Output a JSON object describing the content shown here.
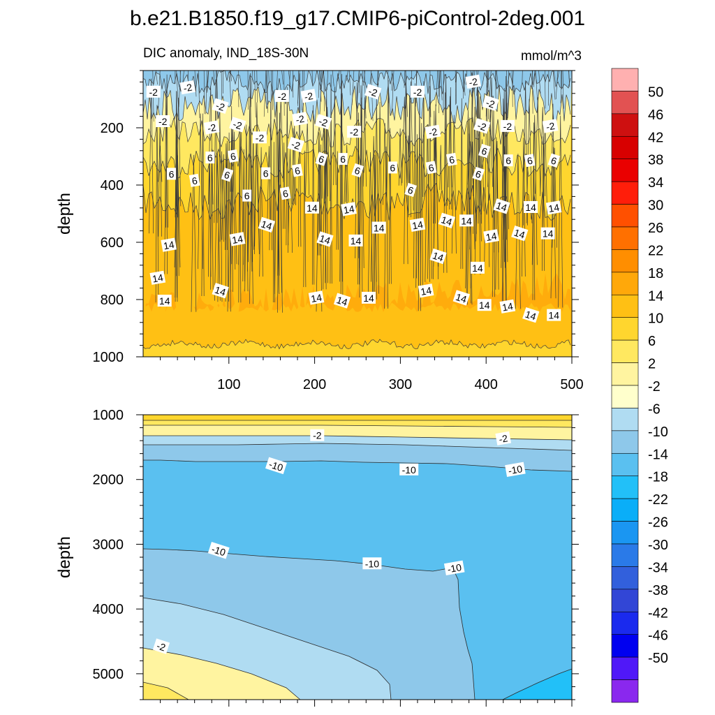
{
  "title": "b.e21.B1850.f19_g17.CMIP6-piControl-2deg.001",
  "chart_data": [
    {
      "type": "contour",
      "panel": "upper",
      "subtitle_left": "DIC anomaly, IND_18S-30N",
      "subtitle_right": "mmol/m^3",
      "xlabel": "",
      "ylabel": "depth",
      "xlim": [
        0,
        500
      ],
      "ylim": [
        1000,
        0
      ],
      "xticks": [
        100,
        200,
        300,
        400,
        500
      ],
      "yticks": [
        200,
        400,
        600,
        800,
        1000
      ],
      "contour_levels": [
        -2,
        6,
        14
      ],
      "contour_labels": [
        {
          "t": 12,
          "d": 75,
          "v": "-2"
        },
        {
          "t": 52,
          "d": 60,
          "v": "-2"
        },
        {
          "t": 90,
          "d": 125,
          "v": "-2"
        },
        {
          "t": 162,
          "d": 90,
          "v": "-2"
        },
        {
          "t": 193,
          "d": 90,
          "v": "-2"
        },
        {
          "t": 268,
          "d": 75,
          "v": "-2"
        },
        {
          "t": 320,
          "d": 75,
          "v": "-2"
        },
        {
          "t": 385,
          "d": 40,
          "v": "-2"
        },
        {
          "t": 405,
          "d": 115,
          "v": "-2"
        },
        {
          "t": 23,
          "d": 178,
          "v": "-2"
        },
        {
          "t": 80,
          "d": 200,
          "v": "-2"
        },
        {
          "t": 110,
          "d": 190,
          "v": "-2"
        },
        {
          "t": 136,
          "d": 235,
          "v": "-2"
        },
        {
          "t": 183,
          "d": 170,
          "v": "-2"
        },
        {
          "t": 210,
          "d": 180,
          "v": "-2"
        },
        {
          "t": 246,
          "d": 215,
          "v": "-2"
        },
        {
          "t": 338,
          "d": 215,
          "v": "-2"
        },
        {
          "t": 395,
          "d": 195,
          "v": "-2"
        },
        {
          "t": 425,
          "d": 195,
          "v": "-2"
        },
        {
          "t": 475,
          "d": 195,
          "v": "-2"
        },
        {
          "t": 178,
          "d": 260,
          "v": "-2"
        },
        {
          "t": 78,
          "d": 305,
          "v": "6"
        },
        {
          "t": 105,
          "d": 300,
          "v": "6"
        },
        {
          "t": 208,
          "d": 310,
          "v": "6"
        },
        {
          "t": 233,
          "d": 310,
          "v": "6"
        },
        {
          "t": 360,
          "d": 312,
          "v": "6"
        },
        {
          "t": 398,
          "d": 282,
          "v": "6"
        },
        {
          "t": 426,
          "d": 315,
          "v": "6"
        },
        {
          "t": 451,
          "d": 315,
          "v": "6"
        },
        {
          "t": 479,
          "d": 315,
          "v": "6"
        },
        {
          "t": 33,
          "d": 362,
          "v": "6"
        },
        {
          "t": 60,
          "d": 385,
          "v": "6"
        },
        {
          "t": 98,
          "d": 365,
          "v": "6"
        },
        {
          "t": 143,
          "d": 360,
          "v": "6"
        },
        {
          "t": 180,
          "d": 350,
          "v": "6"
        },
        {
          "t": 250,
          "d": 350,
          "v": "6"
        },
        {
          "t": 291,
          "d": 340,
          "v": "6"
        },
        {
          "t": 336,
          "d": 340,
          "v": "6"
        },
        {
          "t": 391,
          "d": 362,
          "v": "6"
        },
        {
          "t": 121,
          "d": 438,
          "v": "6"
        },
        {
          "t": 166,
          "d": 430,
          "v": "6"
        },
        {
          "t": 312,
          "d": 418,
          "v": "6"
        },
        {
          "t": 197,
          "d": 480,
          "v": "14"
        },
        {
          "t": 240,
          "d": 485,
          "v": "14"
        },
        {
          "t": 418,
          "d": 475,
          "v": "14"
        },
        {
          "t": 452,
          "d": 478,
          "v": "14"
        },
        {
          "t": 479,
          "d": 480,
          "v": "14"
        },
        {
          "t": 144,
          "d": 540,
          "v": "14"
        },
        {
          "t": 275,
          "d": 550,
          "v": "14"
        },
        {
          "t": 320,
          "d": 540,
          "v": "14"
        },
        {
          "t": 354,
          "d": 525,
          "v": "14"
        },
        {
          "t": 377,
          "d": 525,
          "v": "14"
        },
        {
          "t": 110,
          "d": 590,
          "v": "14"
        },
        {
          "t": 212,
          "d": 590,
          "v": "14"
        },
        {
          "t": 248,
          "d": 595,
          "v": "14"
        },
        {
          "t": 406,
          "d": 580,
          "v": "14"
        },
        {
          "t": 439,
          "d": 570,
          "v": "14"
        },
        {
          "t": 472,
          "d": 570,
          "v": "14"
        },
        {
          "t": 30,
          "d": 610,
          "v": "14"
        },
        {
          "t": 344,
          "d": 650,
          "v": "14"
        },
        {
          "t": 390,
          "d": 690,
          "v": "14"
        },
        {
          "t": 17,
          "d": 725,
          "v": "14"
        },
        {
          "t": 90,
          "d": 770,
          "v": "14"
        },
        {
          "t": 25,
          "d": 805,
          "v": "14"
        },
        {
          "t": 202,
          "d": 795,
          "v": "14"
        },
        {
          "t": 232,
          "d": 805,
          "v": "14"
        },
        {
          "t": 263,
          "d": 795,
          "v": "14"
        },
        {
          "t": 330,
          "d": 770,
          "v": "14"
        },
        {
          "t": 371,
          "d": 795,
          "v": "14"
        },
        {
          "t": 398,
          "d": 820,
          "v": "14"
        },
        {
          "t": 425,
          "d": 825,
          "v": "14"
        },
        {
          "t": 452,
          "d": 855,
          "v": "14"
        },
        {
          "t": 479,
          "d": 855,
          "v": "14"
        }
      ]
    },
    {
      "type": "contour",
      "panel": "lower",
      "xlabel": "",
      "ylabel": "depth",
      "xlim": [
        0,
        500
      ],
      "ylim": [
        5400,
        1000
      ],
      "xticks": [
        100,
        200,
        300,
        400,
        500
      ],
      "yticks": [
        1000,
        2000,
        3000,
        4000,
        5000
      ],
      "contour_levels": [
        -2,
        -10
      ],
      "contour_labels": [
        {
          "t": 203,
          "d": 1320,
          "v": "-2"
        },
        {
          "t": 420,
          "d": 1370,
          "v": "-2"
        },
        {
          "t": 155,
          "d": 1790,
          "v": "-10"
        },
        {
          "t": 310,
          "d": 1850,
          "v": "-10"
        },
        {
          "t": 434,
          "d": 1850,
          "v": "-10"
        },
        {
          "t": 88,
          "d": 3100,
          "v": "-10"
        },
        {
          "t": 267,
          "d": 3300,
          "v": "-10"
        },
        {
          "t": 363,
          "d": 3370,
          "v": "-10"
        },
        {
          "t": 21,
          "d": 4580,
          "v": "-2"
        }
      ]
    }
  ],
  "colorbar": {
    "labels": [
      "50",
      "46",
      "42",
      "38",
      "34",
      "30",
      "26",
      "22",
      "18",
      "14",
      "10",
      "6",
      "2",
      "-2",
      "-6",
      "-10",
      "-14",
      "-18",
      "-22",
      "-26",
      "-30",
      "-34",
      "-38",
      "-42",
      "-46",
      "-50"
    ],
    "colors": [
      "#ffb0b0",
      "#e25252",
      "#ce1010",
      "#d80000",
      "#ea0000",
      "#ff1e0a",
      "#ff5000",
      "#ff7000",
      "#ff8e00",
      "#ffa80a",
      "#ffc014",
      "#ffd62e",
      "#ffe860",
      "#fff4a0",
      "#ffffcc",
      "#b0dcf2",
      "#8ec8ea",
      "#5ac0f0",
      "#22c0f8",
      "#0aaef8",
      "#1a96f2",
      "#2a7ae8",
      "#3260dc",
      "#3246d6",
      "#1a2aee",
      "#0000f0",
      "#5018f8",
      "#8a28ee"
    ]
  }
}
